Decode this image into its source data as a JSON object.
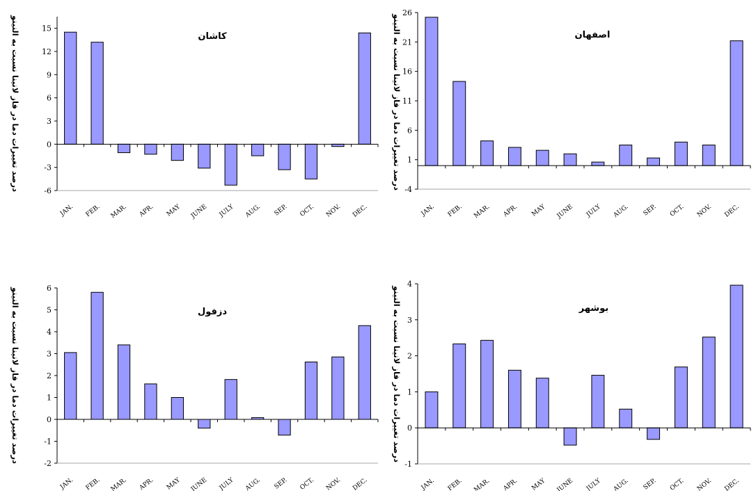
{
  "colors": {
    "bar_fill": "#9999FF",
    "bar_stroke": "#000000",
    "axis": "#000000"
  },
  "chart_data": [
    {
      "type": "bar",
      "title": "کاشان",
      "ylabel": "درصد تغییرات دما در فاز لانینا نسبت به النینو",
      "categories": [
        "JAN.",
        "FEB.",
        "MAR.",
        "APR.",
        "MAY",
        "JUNE",
        "JULY",
        "AUG.",
        "SEP.",
        "OCT.",
        "NOV.",
        "DEC."
      ],
      "values": [
        14.5,
        13.2,
        -1.1,
        -1.3,
        -2.1,
        -3.1,
        -5.3,
        -1.5,
        -3.3,
        -4.5,
        -0.3,
        14.4
      ],
      "yticks": [
        15,
        12,
        9,
        6,
        3,
        0,
        -3,
        -6
      ],
      "ylim": [
        -6,
        16.5
      ],
      "grid": false
    },
    {
      "type": "bar",
      "title": "اصفهان",
      "ylabel": "درصد تغییرات دما در فاز لانینا نسبت به النینو",
      "categories": [
        "JAN.",
        "FEB.",
        "MAR.",
        "APR.",
        "MAY",
        "JUNE",
        "JULY",
        "AUG.",
        "SEP.",
        "OCT.",
        "NOV.",
        "DEC."
      ],
      "values": [
        25.2,
        14.3,
        4.2,
        3.1,
        2.6,
        2.0,
        0.6,
        3.5,
        1.3,
        4.0,
        3.5,
        21.2
      ],
      "yticks": [
        26,
        21,
        16,
        11,
        6,
        1,
        -4
      ],
      "ylim": [
        -4,
        26
      ],
      "grid": false
    },
    {
      "type": "bar",
      "title": "دزفول",
      "ylabel": "درصد تغییرات دما در فاز لانینا نسبت به النینو",
      "categories": [
        "JAN.",
        "FEB.",
        "MAR.",
        "APR.",
        "MAY",
        "JUNE",
        "JULY",
        "AUG.",
        "SEP.",
        "OCT.",
        "NOV.",
        "DEC."
      ],
      "values": [
        3.05,
        5.8,
        3.4,
        1.62,
        1.0,
        -0.4,
        1.82,
        0.08,
        -0.72,
        2.62,
        2.85,
        4.28
      ],
      "yticks": [
        6,
        5,
        4,
        3,
        2,
        1,
        0,
        -1,
        -2
      ],
      "ylim": [
        -2,
        6
      ],
      "grid": false
    },
    {
      "type": "bar",
      "title": "بوشهر",
      "ylabel": "درصد تغییرات دما در فاز لانینا نسبت به النینو",
      "categories": [
        "JAN.",
        "FEB.",
        "MAR.",
        "APR.",
        "MAY",
        "JUNE",
        "JULY",
        "AUG.",
        "SEP.",
        "OCT.",
        "NOV.",
        "DEC."
      ],
      "values": [
        1.0,
        2.33,
        2.43,
        1.6,
        1.38,
        -0.48,
        1.46,
        0.52,
        -0.32,
        1.69,
        2.52,
        3.96
      ],
      "yticks": [
        4,
        3,
        2,
        1,
        0,
        -1
      ],
      "ylim": [
        -1,
        4
      ],
      "grid": false
    }
  ]
}
